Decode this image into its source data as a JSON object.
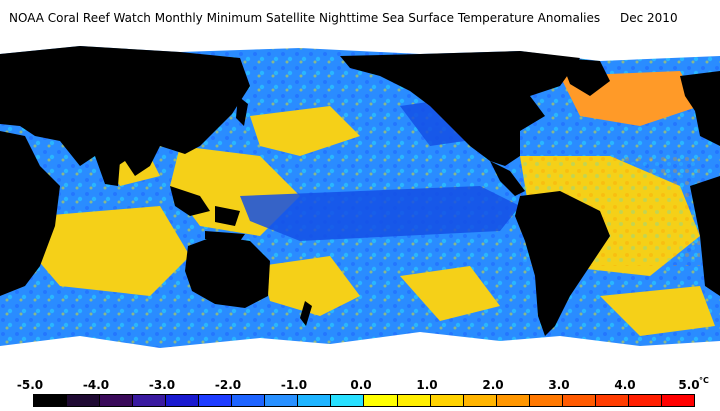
{
  "title": {
    "main": "NOAA Coral Reef Watch Monthly Minimum Satellite Nighttime Sea Surface Temperature Anomalies",
    "date": "Dec 2010"
  },
  "legend": {
    "unit": "°C",
    "ticks": [
      "-5.0",
      "-4.0",
      "-3.0",
      "-2.0",
      "-1.0",
      "0.0",
      "1.0",
      "2.0",
      "3.0",
      "4.0",
      "5.0"
    ],
    "tick_values": [
      -5.0,
      -4.0,
      -3.0,
      -2.0,
      -1.0,
      0.0,
      1.0,
      2.0,
      3.0,
      4.0,
      5.0
    ],
    "range": [
      -5.0,
      5.0
    ],
    "colors": [
      "#000000",
      "#1f0a33",
      "#3a0a5a",
      "#3a1aa0",
      "#1a1ad0",
      "#1e3cff",
      "#1e64ff",
      "#2890ff",
      "#1eb4ff",
      "#28e0ff",
      "#ffff00",
      "#ffee00",
      "#ffd200",
      "#ffb400",
      "#ff9600",
      "#ff7800",
      "#ff5a00",
      "#ff3c00",
      "#ff1e00",
      "#ff0000"
    ]
  },
  "map": {
    "colors": {
      "ocean_cool": "#2a8cff",
      "ocean_deep_cool": "#1450e6",
      "ocean_warm": "#f5d018",
      "ocean_hot": "#ff8a1e",
      "land": "#000000",
      "ice": "#ffffff"
    }
  }
}
